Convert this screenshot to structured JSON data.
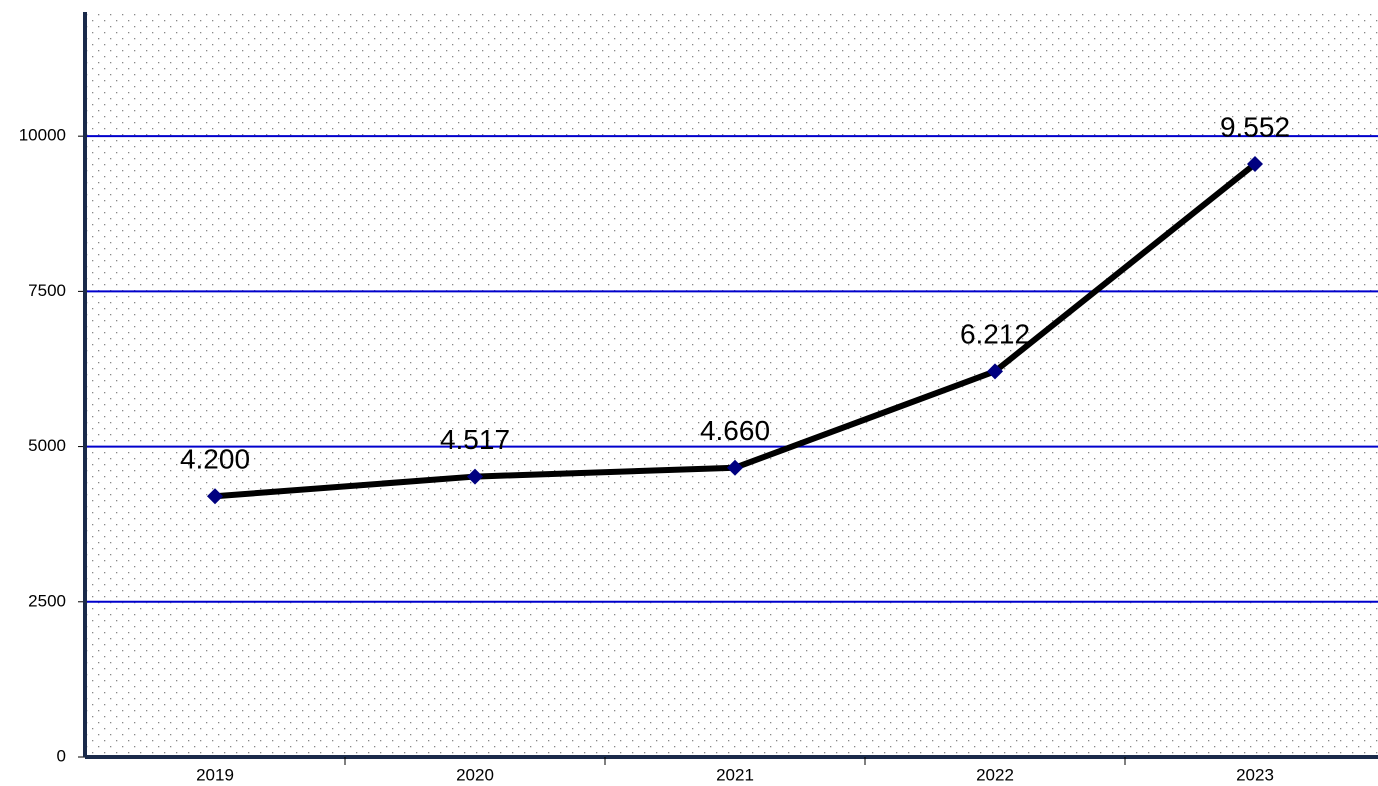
{
  "chart_data": {
    "type": "line",
    "categories": [
      "2019",
      "2020",
      "2021",
      "2022",
      "2023"
    ],
    "series": [
      {
        "color": "#000000",
        "marker_color": "#000080",
        "values": [
          4200,
          4517,
          4660,
          6212,
          9552
        ],
        "value_labels": [
          "4.200",
          "4.517",
          "4.660",
          "6.212",
          "9.552"
        ]
      }
    ],
    "ylim": [
      0,
      12000
    ],
    "yticks": [
      0,
      2500,
      5000,
      7500,
      10000
    ],
    "grid": true,
    "grid_color": "#0000cc"
  }
}
